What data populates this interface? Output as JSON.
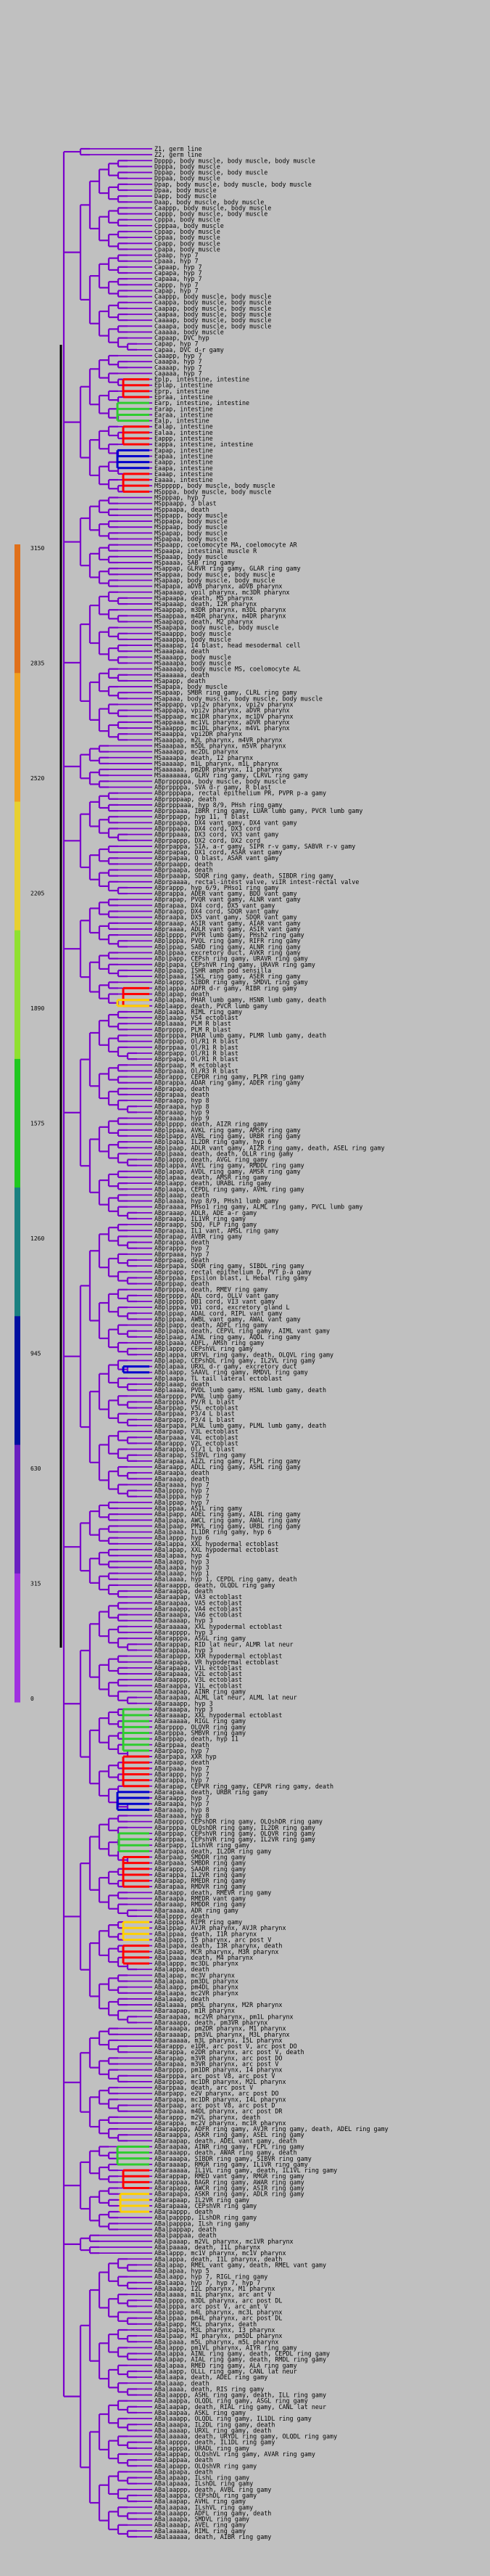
{
  "colors": {
    "background": "#c0c0c0",
    "tree_line": "#7a00cc",
    "root_line": "#000000",
    "highlight_red": "#ff0000",
    "highlight_green": "#2ecc2e",
    "highlight_yellow": "#ffd000",
    "highlight_blue": "#0000cc",
    "scale_gradient": [
      "#e0701a",
      "#f0a020",
      "#e8d030",
      "#90e030",
      "#20c820",
      "#1a8080",
      "#0010a0",
      "#6a20c0",
      "#a030e0"
    ]
  },
  "scale": {
    "tick_labels": [
      "3150",
      "2835",
      "2520",
      "2205",
      "1890",
      "1575",
      "1260",
      "945",
      "630",
      "315",
      "0"
    ]
  },
  "leaves": [
    "Z1, germ line",
    "Z2, germ line",
    "Dpppp, body muscle, body muscle, body muscle",
    "Dpppa, body muscle",
    "Dppap, body muscle, body muscle",
    "Dppaa, body muscle",
    "Dpap, body muscle, body muscle, body muscle",
    "Dpaa, body muscle",
    "Dapp, body muscle",
    "Daap, body muscle, body muscle",
    "Caappp, body muscle, body muscle",
    "Cappp, body muscle, body muscle",
    "Cpppa, body muscle",
    "Cpppaa, body muscle",
    "Cppap, body muscle",
    "Cppaa, body muscle",
    "Cpapp, body muscle",
    "Cpapa, body muscle",
    "Cpaap, hyp 7",
    "Cpaaa, hyp 7",
    "Capaap, hyp 7",
    "Capapa, hyp 7",
    "Capaaa, hyp 7",
    "Cappp, hyp 7",
    "Capap, hyp 7",
    "Caappp, body muscle, body muscle",
    "Caappa, body muscle, body muscle",
    "Caapap, body muscle, body muscle",
    "Caapaa, body muscle, body muscle",
    "Caaaap, body muscle, body muscle",
    "Caaapa, body muscle, body muscle",
    "Caaaaa, body muscle",
    "Capaap, DVC hyp",
    "Capap, hyp 7",
    "Capaa, DVC d-r gamy",
    "Caaapp, hyp 7",
    "Caaapa, hyp 7",
    "Caaaap, hyp 7",
    "Caaaaa, hyp 7",
    "Eplp, intestine, intestine",
    "Eplap, intestine",
    "Eprp, intestine",
    "Epraa, intestine",
    "Earp, intestine, intestine",
    "Earap, intestine",
    "Earaa, intestine",
    "Ealp, intestine",
    "Ealap, intestine",
    "Ealaa, intestine",
    "Eappp, intestine",
    "Eappa, intestine, intestine",
    "Eapap, intestine",
    "Eapaa, intestine",
    "Eaapp, intestine",
    "Eaapa, intestine",
    "Eaaap, intestine",
    "Eaaaa, intestine",
    "MSppppp, body muscle, body muscle",
    "MSpppa, body muscle, body muscle",
    "MSpppap, hyp 7",
    "MSppaapp, 3 blast",
    "MSppaapa, death",
    "MSppapp, body muscle",
    "MSppapa, body muscle",
    "MSppaap, body muscle",
    "MSpapap, body muscle",
    "MSpapaa, body muscle",
    "MSpaapp, coelomocyte MA, coelomocyte AR",
    "MSpaapa, intestinal muscle R",
    "MSpaaap, body muscle",
    "MSpaaaa, SAB ring gamy",
    "MSappap, GLRVR ring gamy, GLAR ring gamy",
    "MSappaa, body muscle, body muscle",
    "MSapaap, body muscle, body muscle",
    "MSapapa, aDVB pharynx, aDVB pharynx",
    "MSapaaap, vpil pharynx, mc3DR pharynx",
    "MSapaapa, death, M5 pharynx",
    "MSapaaap, death, I2R pharynx",
    "MSaappap, m3DR pharynx, m3DL pharynx",
    "MSaappaa, m4DR pharynx, m4DR pharynx",
    "MSaapapp, death, M2 pharynx",
    "MSaapapa, body muscle, body muscle",
    "MSaaappp, body muscle",
    "MSaaappa, body muscle",
    "MSaaapap, I4 blast, head mesodermal cell",
    "MSaaapaa, death",
    "MSaaaapp, body muscle",
    "MSaaaapa, body muscle",
    "MSaaaaap, body muscle MS, coelomocyte AL",
    "MSaaaaaa, death",
    "MSapapp, death",
    "MSapapa, body muscle",
    "MSapaap, SMBR ring gamy, CLRL ring gamy",
    "MSapaaa, body muscle, body muscle, body muscle",
    "MSappapp, vpi2v pharynx, vpi2v pharynx",
    "MSappapa, vpi2v pharynx, aDVR pharynx",
    "MSappaap, mc1DR pharynx, mc1DV pharynx",
    "MSappaaa, mc1VL pharynx, aDVR pharynx",
    "MSaaappp, mc1DL pharynx, m4VL pharynx",
    "MSaaappa, vpi2DR pharynx",
    "MSaaapap, m2L pharynx, m4VR pharynx",
    "MSaaapaa, m5DL pharynx, m5VR pharynx",
    "MSaaaapp, mc2DL pharynx",
    "MSaaaapa, death, I2 pharynx",
    "MSaaaaap, m1L pharynx, m1L pharynx",
    "MSaaaaaa, pm2DR pharynx, I1 pharynx",
    "MSaaaaaaa, GLRV ring gamy, CLRVL ring gamy",
    "ABprpppppa, body muscle, body muscle",
    "ABprppppa, SVA d-r gamy, R blast",
    "ABprpppapa, rectal epithelium PR, PVPR p-a gamy",
    "ABprpppaap, death",
    "ABprpppaaa, hyp 8/9, PHsh ring gamy",
    "ABprppaaa, IBRR ring gamy, LUAR lumb gamy, PVCR lumb gamy",
    "ABprppapp, hyp 11, T blast",
    "ABprppapa, DX4 vant gamy, DX4 vant gamy",
    "ABprppaap, DX4 cord, DX3 cord",
    "ABprppaaa, DX3 cord, VX3 vant gamy",
    "ABprpappp, DX2 cord, DX2 cord",
    "ABprpappa, SIA, a-r gamy, SIPR r-v gamy, SABVR r-v gamy",
    "ABprpapap, DX1 cord, ASAR vant gamy",
    "ABprpapaa, Q blast, ASAR vant gamy",
    "ABprpaapp, death",
    "ABprpaapa, death",
    "ABprpaaap, SDQR ring gamy, death, SIBDR ring gamy",
    "ABprpaaaa, rectal-intest valve, viIR intest-rectal valve",
    "ABprappp, hyp 6/9, PHso1 ring gamy",
    "ABprappa, ADER vant gamy, BDU vant gamy",
    "ABprapap, PVQR vant gamy, ALNR vant gamy",
    "ABprapaa, DX4 cord, DX5 vant gamy",
    "ABpraapp, DX4 cord, SDQR vant gamy",
    "ABpraapa, DX5 vant gamy, SDQR vant gamy",
    "ABpraaap, ASIR vant gamy, AIAR vant gamy",
    "ABpraaaa, ADLR vant gamy, ASIR vant gamy",
    "ABplpppp, PVPR lumb gamy, PHsh2 ring gamy",
    "ABplpppa, PVQL ring gamy, RIFR ring gamy",
    "ABplppap, SABD ring gamy, ALNR ring gamy",
    "ABplppaa, excretory duct, AVKR ring gamy",
    "ABplpapp, CEPsh ring gamy, URAVR ring gamy",
    "ABplpapa, CEPshVR ring gamy, URAVR ring gamy",
    "ABplpaap, ISHR amph pod sensilla",
    "ABplpaaa, ISKL ring gamy, ASER ring gamy",
    "ABplappp, SIBDR ring gamy, SMDVL ring gamy",
    "ABplappa, ADFR d-r gamy, RIBR ring gamy",
    "ABplapap, death",
    "ABplapaa, PHAR lumb gamy, HSNR lumb gamy, death",
    "ABplaapp, death, PVCR lumb gamy",
    "ABplaapa, RIML ring gamy",
    "ABplaaap, VS4 ectoblast",
    "ABplaaaa, PLM R blast",
    "ABprpppp, PLM R blast",
    "ABprpppa, PHAR lumb gamy, PLMR lumb gamy, death",
    "ABprppap, Ol/R1 R blast",
    "ABprppaa, Ol/R1 R blast",
    "ABprpapp, Ol/R1 R blast",
    "ABprpapa, Ol/R1 R blast",
    "ABprpaap, M ectoblast",
    "ABprpaaa, Ol/R3 R blast",
    "ABprappp, CEPDR ring gamy, PLPR ring gamy",
    "ABprappa, ADAR ring gamy, ADER ring gamy",
    "ABprapap, death",
    "ABprapaa, death",
    "ABpraapp, hyp 8",
    "ABpraapa, hyp 8",
    "ABpraaap, hyp 9",
    "ABpraaaa, hyp 9",
    "ABplpppp, death, AIZR ring gamy",
    "ABplppaa, AVKL ring gamy, AMSR ring gamy",
    "ABplpapp, AVBL ring gamy, URBR ring gamy",
    "ABplpapa, IL2DR ring gamy, hyp 6",
    "ABplpaap, ADLR vant gamy, AIZR ring gamy, death, ASEL ring gamy",
    "ABplpaaa, death, death, OLLR ring gamy",
    "ABplappp, death, AVGL ring gamy",
    "ABplappa, AVEL ring gamy, RMDDL ring gamy",
    "ABplapap, AVDL ring gamy, AMSR ring gamy",
    "ABplapaa, death, AMSR ring gamy",
    "ABplaapp, death, URABL ring gamy",
    "ABplaapa, CEPDL ring gamy, AVHL ring gamy",
    "ABplaaap, death",
    "ABplaaaa, hyp 8/9, PHsh1 lumb gamy",
    "ABpraaaa, PHso1 ring gamy, ALML ring gamy, PVCL lumb gamy",
    "ABpraaap, ADLR, ADE a-r gamy",
    "ABpraapa, IL1VR ring gamy",
    "ABpraapp, SDQ, FLP ring gamy",
    "ABprapaa, IL1 vant, AMSL ring gamy",
    "ABprapap, AVBR ring gamy",
    "ABprappa, death",
    "ABprappp, hyp 7",
    "ABprpaaa, hyp 7",
    "ABprpaap, death",
    "ABprpapa, SDQR ring gamy, SIBDL ring gamy",
    "ABprpapp, rectal epithelium D, PVT p-a gamy",
    "ABprppaa, Epsilon blast, L Hebal ring gamy",
    "ABprppap, death",
    "ABprpppa, death, RMEV ring gamy",
    "ABprpppp, ADL cord, OLLV vant gamy",
    "ABplpppp, DB1 cord, VI3 vant gamy",
    "ABplpppa, VD1 cord, excretory gland L",
    "ABplppap, ADAL cord, RIPL vant gamy",
    "ABplppaa, AWBL vant gamy, AWAL vant gamy",
    "ABplpapp, death, ADFL ring gamy",
    "ABplpapa, death, CEPVL ring gamy, AIML vant gamy",
    "ABplpaap, AINL ring gamy, AQDL ring gamy",
    "ABplpaaa, ADFL, AMsh ring gamy",
    "ABplappp, CEPshVL ring gamy",
    "ABplappa, URYVL ring gamy, death, OLQVL ring gamy",
    "ABplapap, CEPshDL ring gamy, IL2VL ring gamy",
    "ABplapaa, URXL d-r gamy, excretory duct",
    "ABplaapp, SAAVL ring gamy, RMDVL ring gamy",
    "ABplaapa, TL tail lateral ectoblast",
    "ABplaaap, death",
    "ABplaaaa, PVDL lumb gamy, HSNL lumb gamy, death",
    "ABarpppp, PVNL lumb gamy",
    "ABarpppa, PV/R L blast",
    "ABarppap, V5L ectoblast",
    "ABarppaa, P3/4 L blast",
    "ABarpapp, P3/4 L blast",
    "ABarpapa, PLNL lumb gamy, PLML lumb gamy, death",
    "ABarpaap, V3L ectoblast",
    "ABarpaaa, V4L ectoblast",
    "ABarappp, V2L ectoblast",
    "ABarappa, Ol/1 L blast",
    "ABarapap, SIBVL ring gamy",
    "ABarapaa, AIZL ring gamy, FLPL ring gamy",
    "ABaraapp, ADLL ring gamy, ASHL ring gamy",
    "ABaraapa, death",
    "ABaraaap, death",
    "ABaraaaa, hyp 7",
    "ABalpppp, hyp 7",
    "ABalpppa, hyp 7",
    "ABalppap, hyp 7",
    "ABalppaa, ASIL ring gamy",
    "ABalpapp, ADEL ring gamy, AIBL ring gamy",
    "ABalpapa, AWCL ring gamy, AWAL ring gamy",
    "ABalpaap, PMVL ring gamy, URBL ring gamy",
    "ABalpaaa, IL1DR ring gamy, hyp 6",
    "ABalappp, hyp 6",
    "ABalappa, XXL hypodermal ectoblast",
    "ABalapap, XXL hypodermal ectoblast",
    "ABalapaa, hyp 4",
    "ABalaapp, hyp 3",
    "ABalaapa, hyp 3",
    "ABalaaap, hyp 1",
    "ABalaaaa, hyp 1, CEPDL ring gamy, death",
    "ABaraappp, death, OLQDL ring gamy",
    "ABaraappa, death",
    "ABaraapap, VA3 ectoblast",
    "ABaraapaa, VA5 ectoblast",
    "ABaraaapp, VA4 ectoblast",
    "ABaraaapa, VA6 ectoblast",
    "ABaraaaap, hyp 3",
    "ABaraaaaa, XXL hypodermal ectoblast",
    "ABarapppp, hyp 3",
    "ABarapppa, ASGL ring gamy",
    "ABarappap, RID lat neur, ALMR lat neur",
    "ABarappaa, hyp 3",
    "ABarapapp, XXR hypodermal ectoblast",
    "ABarapapa, VR hypodermal ectoblast",
    "ABarapaap, V1L ectoblast",
    "ABarapaaa, V2L ectoblast",
    "ABaraappp, V3L ectoblast",
    "ABaraappa, V1L ectoblast",
    "ABaraapap, AINR ring gamy",
    "ABaraapaa, ALML lat neur, ALML lat neur",
    "ABaraaapp, hyp 3",
    "ABaraaapa, hyp 3",
    "ABaraaaap, XXL hypodermal ectoblast",
    "ABaraaaaa, RIGL ring gamy",
    "ABarpppp, OLQVR ring gamy",
    "ABarpppa, SMBVR ring gamy",
    "ABarppap, death, hyp 11",
    "ABarppaa, death",
    "ABarpapp, hyp 7",
    "ABarpapa, XXR hyp",
    "ABarpaap, death",
    "ABarpaaa, hyp 7",
    "ABarappp, hyp 7",
    "ABarappa, hyp 7",
    "ABarapap, CEPVR ring gamy, CEPVR ring gamy, death",
    "ABarapaa, death, URBR ring gamy",
    "ABaraapp, hyp 7",
    "ABaraapa, hyp 7",
    "ABaraaap, hyp 8",
    "ABaraaaa, hyp 8",
    "ABarpppp, CEPshDR ring gamy, OLQshDR ring gamy",
    "ABarpppa, OLQshDR ring gamy, IL2DR ring gamy",
    "ABarppap, CEPshVR ring gamy, OLQVR ring gamy",
    "ABarppaa, CEPshVR ring gamy, IL2VR ring gamy",
    "ABarpapp, ILshVR ring gamy",
    "ABarpapa, death, IL2DR ring gamy",
    "ABarpaap, SMDDR ring gamy",
    "ABarpaaa, SMBDR ring gamy",
    "ABarappp, SAADR ring gamy",
    "ABarappa, IL2VR ring gamy",
    "ABarapap, RMEDR ring gamy",
    "ABarapaa, RMDVR ring gamy",
    "ABaraapp, death, RMEVR ring gamy",
    "ABaraapa, RMEDR vant gamy",
    "ABaraaap, RMDDR ring gamy",
    "ABaraaaa, ADR ring gamy",
    "ABalpppp, death",
    "ABalpppa, RIPR ring gamy",
    "ABalppap, AVJR pharynx, AVJR pharynx",
    "ABalppaa, death, I1R pharynx",
    "ABalpapp, I5 pharynx, arc post V",
    "ABalpapa, death, I3R pharynx, death",
    "ABalpaap, MCR pharynx, M3R pharynx",
    "ABalpaaa, death, M4 pharynx",
    "ABalappp, mc3DL pharynx",
    "ABalappa, death",
    "ABalapap, mc3V pharynx",
    "ABalapaa, pm3DL pharynx",
    "ABalaapp, pm4DL pharynx",
    "ABalaapa, mc2VR pharynx",
    "ABalaaap, death",
    "ABalaaaa, pm5L pharynx, M2R pharynx",
    "ABaraapap, m1R pharynx",
    "ABaraapaa, mc2VR pharynx, pm1L pharynx",
    "ABaraaapp, death, pm3VR pharynx",
    "ABaraaapa, pm2DR pharynx, M1 pharynx",
    "ABaraaaap, pm3VL pharynx, M3L pharynx",
    "ABaraaaaa, m3L pharynx, I5L pharynx",
    "ABarappp, e1DR, arc post V, arc post DO",
    "ABarappa, e2DR pharynx, arc post V, death",
    "ABarapap, m3VR pharynx, arc post DO",
    "ABarapaa, m3VR pharynx, arc post V",
    "ABarpppp, pm1DR pharynx, I4 pharynx",
    "ABarpppa, arc post V8, arc post V",
    "ABarppap, mc1DR pharynx, M2L pharynx",
    "ABarppaa, death, arc post V",
    "ABarpapp, e2V pharynx, arc post DO",
    "ABarpapa, mc1DR pharynx, I4L pharynx",
    "ABarpaap, arc post V8, arc post D",
    "ABarpaaa, m4DL pharynx, arc post DR",
    "ABarappp, m2VL pharynx, death",
    "ABarappa, mc2V pharynx, mc1R pharynx",
    "ABaraappp, ADFR ring gamy, AVJR ring gamy, death, ADEL ring gamy",
    "ABaraappa, ASKR ring gamy, ASEL ring gamy",
    "ABaraapap, death, ADEL vant gamy, death",
    "ABaraapaa, AINR ring gamy, FLPL ring gamy",
    "ABaraaapp, death, AWAR ring gamy, death",
    "ABaraaapa, SIBDR ring gamy, SIBVR ring gamy",
    "ABaraaaap, RMGR ring gamy, IL1VR ring gamy",
    "ABaraaaaa, IL1VL ring gamy, death, IL1VL ring gamy",
    "ABarappap, RMED vant gamy, RMGR ring gamy",
    "ABarappaa, BAGR ring gamy, AWAR ring gamy",
    "ABarapapp, AWCR ring gamy, ASIR ring gamy",
    "ABarapapa, ASKR ring gamy, ADLR ring gamy",
    "ABarapaap, IL2VR ring gamy",
    "ABarapaaa, CEPshVR ring gamy",
    "ABaraappp, death",
    "ABalpapppp, ILshDR ring gamy",
    "ABalpapppa, ILsh ring gamy",
    "ABalpappap, death",
    "ABalpappaa, death",
    "ABalpaaap, m2VL pharynx, mc1VR pharynx",
    "ABalpaaaa, death, I1L pharynx",
    "ABalappp, mc1V pharynx, mc1V pharynx",
    "ABalappa, death, I1L pharynx, death",
    "ABalapap, RMEL vant gamy, death, RMEL vant gamy",
    "ABalapaa, hyp 5",
    "ABalaapp, hyp 7, RIGL ring gamy",
    "ABalaapa, hyp 7, hyp 7, hyp 7",
    "ABalaaap, I2L pharynx, M1 pharynx",
    "ABalaaaa, m1L pharynx, arc ant V",
    "ABalpppp, m3DL pharynx, arc post DL",
    "ABalpppa, arc post V, arc ant V",
    "ABalppap, m4L pharynx, mc3L pharynx",
    "ABalppaa, pm4L pharynx, arc post DL",
    "ABalpapp, MCL pharynx, death",
    "ABalpapa, M3L pharynx, I3 pharynx",
    "ABalpaap, MI pharynx, pm5DL pharynx",
    "ABalpaaa, m5L pharynx, m5L pharynx",
    "ABalappp, pm1VL pharynx, AIYR ring gamy",
    "ABalappa, AINL ring gamy, death, CEPDL ring gamy",
    "ABalapap, AIAL ring gamy, death, RMDL ring gamy",
    "ABalapaa, RMED ring gamy, ALA ring gamy",
    "ABalaapp, OLLL ring gamy, CANL lat neur",
    "ABalaapa, death, ADEL ring gamy",
    "ABalaaap, death",
    "ABalaaaa, death, RIS ring gamy",
    "ABalaappp, ASHL ring gamy, death, ILL ring gamy",
    "ABalaappa, OLQDL ring gamy, ASGL ring gamy",
    "ABalaapap, death, RIAL ring gamy, CANL lat neur",
    "ABalaapaa, ASKL ring gamy",
    "ABalaaapp, OLQDL ring gamy, IL1DL ring gamy",
    "ABalaaapa, IL2DL ring gamy, death",
    "ABalaaaap, URXL ring gamy, death",
    "ABalaaaaa, death, URYDL ring gamy, OLQDL ring gamy",
    "ABalapppp, death, IL1DL ring gamy",
    "ABalapppa, URADL ring gamy",
    "ABalappap, OLQshVL ring gamy, AVAR ring gamy",
    "ABalappaa, death",
    "ABalapapp, OLQshVR ring gamy",
    "ABalapapa, death",
    "ABalapaap, ILshL ring gamy",
    "ABalapaaa, ILshDL ring gamy",
    "ABalaappp, death, AVBL ring gamy",
    "ABalaappa, CEPshDL ring gamy",
    "ABalaapap, AVHL ring gamy",
    "ABalaapaa, ILshVL ring gamy",
    "ABalaaapp, ADFL ring gamy, death",
    "ABalaaapa, SMDVL ring gamy",
    "ABalaaaap, AVEL ring gamy",
    "ABalaaaaa, RIML ring gamy",
    "ABalaaaaa, death, AIBR ring gamy"
  ]
}
